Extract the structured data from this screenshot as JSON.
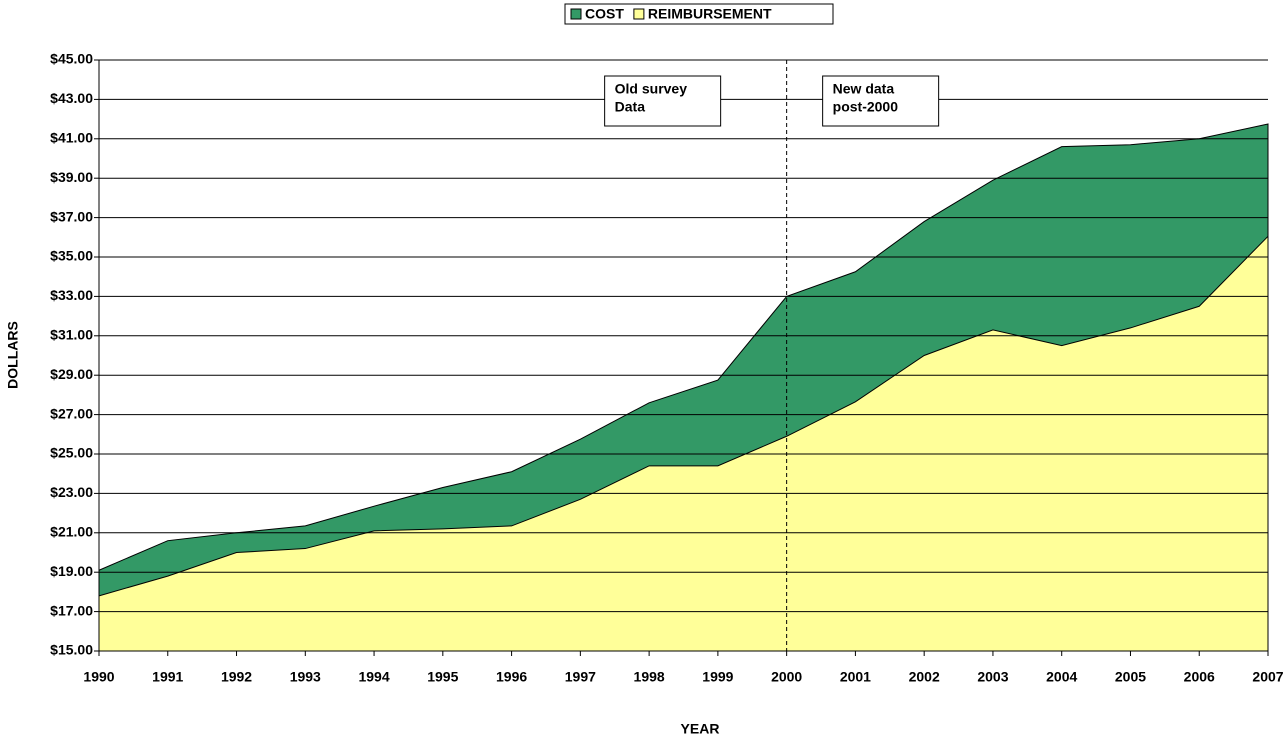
{
  "chart_data": {
    "type": "area",
    "x_label": "YEAR",
    "y_label": "DOLLARS",
    "x": [
      1990,
      1991,
      1992,
      1993,
      1994,
      1995,
      1996,
      1997,
      1998,
      1999,
      2000,
      2001,
      2002,
      2003,
      2004,
      2005,
      2006,
      2007
    ],
    "xlim": [
      1990,
      2007
    ],
    "series": [
      {
        "name": "COST",
        "color": "#339966",
        "values": [
          19.1,
          20.6,
          21.0,
          21.35,
          22.35,
          23.3,
          24.1,
          25.75,
          27.6,
          28.75,
          33.0,
          34.25,
          36.8,
          38.9,
          40.6,
          40.7,
          41.0,
          41.75
        ]
      },
      {
        "name": "REIMBURSEMENT",
        "color": "#ffff99",
        "values": [
          17.8,
          18.8,
          20.0,
          20.2,
          21.1,
          21.2,
          21.35,
          22.7,
          24.4,
          24.4,
          25.9,
          27.65,
          30.0,
          31.3,
          30.5,
          31.4,
          32.5,
          36.05
        ]
      }
    ],
    "ylim": [
      15,
      45
    ],
    "yticks": [
      {
        "value": 15,
        "label": "$15.00"
      },
      {
        "value": 17,
        "label": "$17.00"
      },
      {
        "value": 19,
        "label": "$19.00"
      },
      {
        "value": 21,
        "label": "$21.00"
      },
      {
        "value": 23,
        "label": "$23.00"
      },
      {
        "value": 25,
        "label": "$25.00"
      },
      {
        "value": 27,
        "label": "$27.00"
      },
      {
        "value": 29,
        "label": "$29.00"
      },
      {
        "value": 31,
        "label": "$31.00"
      },
      {
        "value": 33,
        "label": "$33.00"
      },
      {
        "value": 35,
        "label": "$35.00"
      },
      {
        "value": 37,
        "label": "$37.00"
      },
      {
        "value": 39,
        "label": "$39.00"
      },
      {
        "value": 41,
        "label": "$41.00"
      },
      {
        "value": 43,
        "label": "$43.00"
      },
      {
        "value": 45,
        "label": "$45.00"
      }
    ],
    "grid": true,
    "divider_x": 2000,
    "annotations": [
      [
        "Old survey",
        "Data"
      ],
      [
        "New data",
        "post-2000"
      ]
    ]
  }
}
